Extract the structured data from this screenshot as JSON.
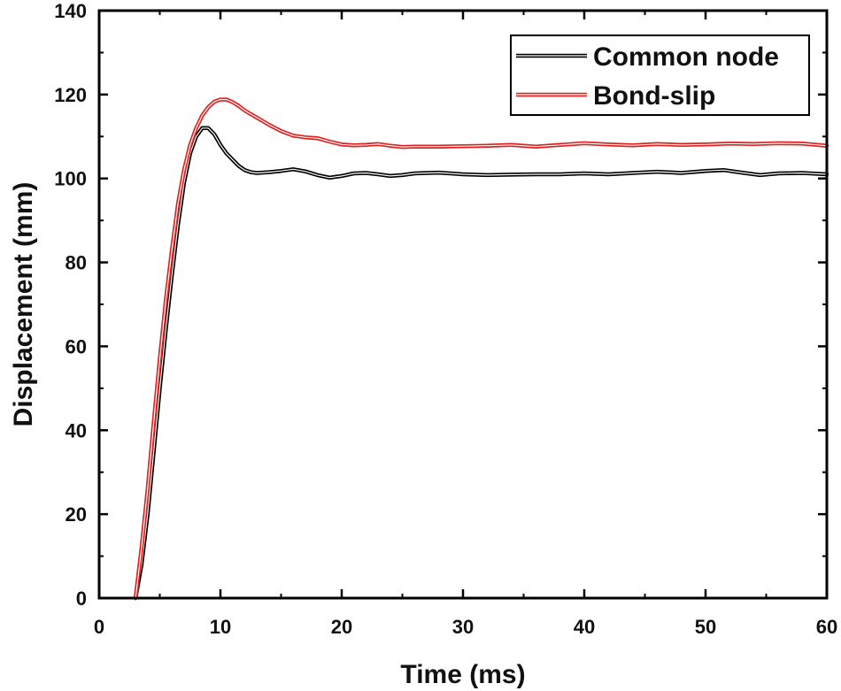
{
  "chart_data": {
    "type": "line",
    "xlabel": "Time (ms)",
    "ylabel": "Displacement (mm)",
    "xlim": [
      0,
      60
    ],
    "ylim": [
      0,
      140
    ],
    "xticks": [
      0,
      10,
      20,
      30,
      40,
      50,
      60
    ],
    "yticks": [
      0,
      20,
      40,
      60,
      80,
      100,
      120,
      140
    ],
    "xtick_labels": [
      "0",
      "10",
      "20",
      "30",
      "40",
      "50",
      "60"
    ],
    "ytick_labels": [
      "0",
      "20",
      "40",
      "60",
      "80",
      "100",
      "120",
      "140"
    ],
    "grid": false,
    "legend_position": "top-right",
    "series": [
      {
        "name": "Common node",
        "color": "#000000",
        "x": [
          3.0,
          3.5,
          4.0,
          4.5,
          5.0,
          5.5,
          6.0,
          6.5,
          7.0,
          7.5,
          8.0,
          8.5,
          9.0,
          9.5,
          10.0,
          10.5,
          11.0,
          11.5,
          12.0,
          12.5,
          13.0,
          14.0,
          15.0,
          16.0,
          17.0,
          18.0,
          19.0,
          20.0,
          21.0,
          22.0,
          23.0,
          24.0,
          25.0,
          26.0,
          27.0,
          28.0,
          29.0,
          30.0,
          32.0,
          34.0,
          36.0,
          38.0,
          40.0,
          42.0,
          44.0,
          46.0,
          48.0,
          50.0,
          51.5,
          53.0,
          54.5,
          56.0,
          58.0,
          60.0
        ],
        "y": [
          0,
          8,
          20,
          35,
          50,
          64,
          77,
          89,
          99,
          106,
          110,
          112,
          112,
          110.5,
          108,
          106,
          104.5,
          103,
          102,
          101.5,
          101.3,
          101.5,
          101.8,
          102.2,
          101.7,
          100.8,
          100.2,
          100.6,
          101.2,
          101.3,
          101.0,
          100.6,
          100.8,
          101.2,
          101.3,
          101.4,
          101.2,
          101.0,
          100.8,
          100.9,
          101.0,
          101.0,
          101.2,
          101.0,
          101.3,
          101.6,
          101.3,
          101.8,
          102.0,
          101.4,
          100.8,
          101.2,
          101.3,
          101.0
        ]
      },
      {
        "name": "Bond-slip",
        "color": "#e0201e",
        "x": [
          3.0,
          3.5,
          4.0,
          4.5,
          5.0,
          5.5,
          6.0,
          6.5,
          7.0,
          7.5,
          8.0,
          8.5,
          9.0,
          9.5,
          10.0,
          10.5,
          11.0,
          11.5,
          12.0,
          13.0,
          14.0,
          15.0,
          16.0,
          17.0,
          18.0,
          19.0,
          20.0,
          21.0,
          22.0,
          23.0,
          24.0,
          25.0,
          26.0,
          28.0,
          30.0,
          32.0,
          34.0,
          36.0,
          38.0,
          40.0,
          42.0,
          44.0,
          46.0,
          48.0,
          50.0,
          52.0,
          54.0,
          56.0,
          58.0,
          60.0
        ],
        "y": [
          0,
          12,
          26,
          42,
          57,
          71,
          83,
          94,
          102,
          108,
          112,
          115,
          117,
          118.3,
          118.8,
          118.8,
          118.2,
          117.3,
          116.2,
          114.5,
          112.8,
          111.3,
          110.2,
          109.8,
          109.6,
          108.8,
          108.1,
          107.9,
          108.0,
          108.2,
          107.8,
          107.5,
          107.6,
          107.6,
          107.7,
          107.8,
          108.0,
          107.6,
          108.0,
          108.4,
          108.1,
          107.9,
          108.2,
          108.0,
          108.1,
          108.3,
          108.2,
          108.4,
          108.3,
          107.8
        ]
      }
    ]
  }
}
